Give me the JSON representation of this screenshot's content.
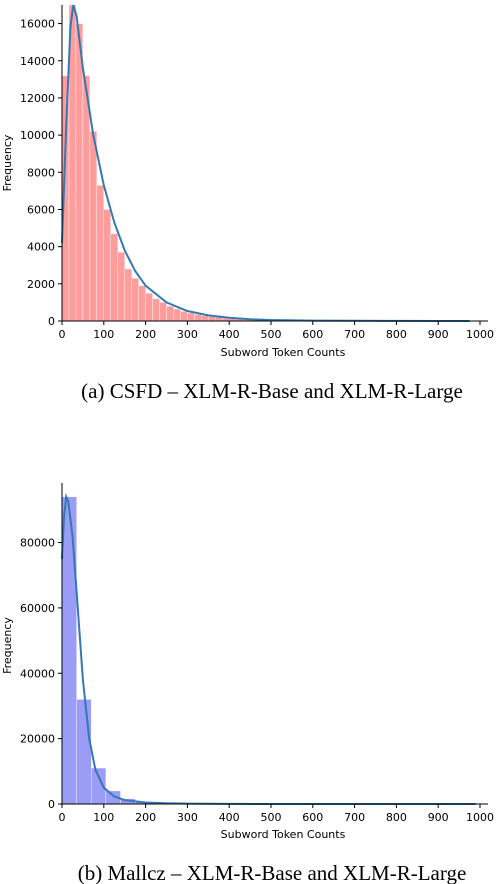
{
  "chart_data": [
    {
      "type": "bar",
      "subtype": "histogram-with-kde",
      "caption": "(a) CSFD – XLM-R-Base and XLM-R-Large",
      "xlabel": "Subword Token Counts",
      "ylabel": "Frequency",
      "xlim": [
        0,
        1000
      ],
      "ylim": [
        0,
        17000
      ],
      "xticks": [
        "0",
        "100",
        "200",
        "300",
        "400",
        "500",
        "600",
        "700",
        "800",
        "900",
        "1000"
      ],
      "yticks": [
        "0",
        "2000",
        "4000",
        "6000",
        "8000",
        "10000",
        "12000",
        "14000",
        "16000"
      ],
      "bar_color": "#ff9c9c",
      "line_color": "#3478b4",
      "bin_width": 16.7,
      "bins": [
        {
          "x0": 0,
          "value": 13200
        },
        {
          "x0": 16.7,
          "value": 17000
        },
        {
          "x0": 33.3,
          "value": 16000
        },
        {
          "x0": 50,
          "value": 13200
        },
        {
          "x0": 66.7,
          "value": 10200
        },
        {
          "x0": 83.3,
          "value": 7300
        },
        {
          "x0": 100,
          "value": 6000
        },
        {
          "x0": 116.7,
          "value": 4700
        },
        {
          "x0": 133.3,
          "value": 3700
        },
        {
          "x0": 150,
          "value": 2800
        },
        {
          "x0": 166.7,
          "value": 2300
        },
        {
          "x0": 183.3,
          "value": 1900
        },
        {
          "x0": 200,
          "value": 1500
        },
        {
          "x0": 216.7,
          "value": 1200
        },
        {
          "x0": 233.3,
          "value": 1000
        },
        {
          "x0": 250,
          "value": 800
        },
        {
          "x0": 266.7,
          "value": 650
        },
        {
          "x0": 283.3,
          "value": 520
        },
        {
          "x0": 300,
          "value": 430
        },
        {
          "x0": 316.7,
          "value": 350
        },
        {
          "x0": 333.3,
          "value": 290
        },
        {
          "x0": 350,
          "value": 240
        },
        {
          "x0": 366.7,
          "value": 200
        },
        {
          "x0": 383.3,
          "value": 160
        },
        {
          "x0": 400,
          "value": 130
        },
        {
          "x0": 416.7,
          "value": 100
        },
        {
          "x0": 433.3,
          "value": 80
        },
        {
          "x0": 450,
          "value": 60
        },
        {
          "x0": 466.7,
          "value": 50
        },
        {
          "x0": 483.3,
          "value": 40
        },
        {
          "x0": 500,
          "value": 30
        },
        {
          "x0": 516.7,
          "value": 25
        },
        {
          "x0": 533.3,
          "value": 20
        },
        {
          "x0": 550,
          "value": 15
        },
        {
          "x0": 566.7,
          "value": 12
        },
        {
          "x0": 583.3,
          "value": 10
        }
      ],
      "kde": [
        [
          0,
          4200
        ],
        [
          10,
          10500
        ],
        [
          20,
          15800
        ],
        [
          27,
          17000
        ],
        [
          35,
          16400
        ],
        [
          50,
          13600
        ],
        [
          75,
          10000
        ],
        [
          100,
          7300
        ],
        [
          125,
          5300
        ],
        [
          150,
          3800
        ],
        [
          175,
          2700
        ],
        [
          200,
          1900
        ],
        [
          250,
          1000
        ],
        [
          300,
          540
        ],
        [
          350,
          300
        ],
        [
          400,
          170
        ],
        [
          450,
          95
        ],
        [
          500,
          55
        ],
        [
          600,
          20
        ],
        [
          700,
          10
        ],
        [
          800,
          5
        ],
        [
          900,
          2
        ],
        [
          975,
          0
        ]
      ]
    },
    {
      "type": "bar",
      "subtype": "histogram-with-kde",
      "caption": "(b) Mallcz – XLM-R-Base and XLM-R-Large",
      "xlabel": "Subword Token Counts",
      "ylabel": "Frequency",
      "xlim": [
        0,
        1000
      ],
      "ylim": [
        0,
        97000
      ],
      "xticks": [
        "0",
        "100",
        "200",
        "300",
        "400",
        "500",
        "600",
        "700",
        "800",
        "900",
        "1000"
      ],
      "yticks": [
        "0",
        "20000",
        "40000",
        "60000",
        "80000"
      ],
      "bar_color": "#9a9cf6",
      "line_color": "#3478b4",
      "bin_width": 35,
      "bins": [
        {
          "x0": 0,
          "value": 94000
        },
        {
          "x0": 35,
          "value": 32000
        },
        {
          "x0": 70,
          "value": 11000
        },
        {
          "x0": 105,
          "value": 4000
        },
        {
          "x0": 140,
          "value": 1600
        },
        {
          "x0": 175,
          "value": 700
        },
        {
          "x0": 210,
          "value": 350
        },
        {
          "x0": 245,
          "value": 200
        },
        {
          "x0": 280,
          "value": 120
        },
        {
          "x0": 315,
          "value": 80
        },
        {
          "x0": 350,
          "value": 50
        }
      ],
      "kde": [
        [
          0,
          75000
        ],
        [
          5,
          88000
        ],
        [
          10,
          94000
        ],
        [
          15,
          92500
        ],
        [
          25,
          82000
        ],
        [
          35,
          65000
        ],
        [
          50,
          38000
        ],
        [
          65,
          20000
        ],
        [
          80,
          10500
        ],
        [
          100,
          5000
        ],
        [
          125,
          2300
        ],
        [
          150,
          1200
        ],
        [
          200,
          450
        ],
        [
          250,
          220
        ],
        [
          300,
          110
        ],
        [
          400,
          40
        ],
        [
          500,
          15
        ],
        [
          700,
          5
        ],
        [
          990,
          0
        ]
      ]
    }
  ]
}
